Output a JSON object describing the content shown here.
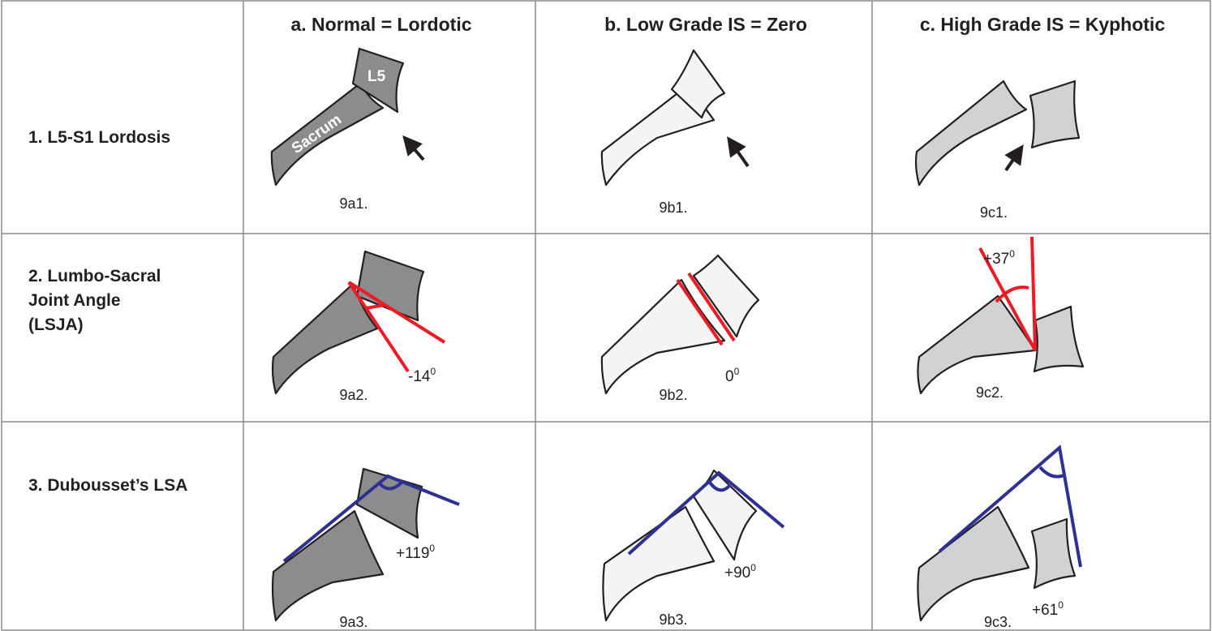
{
  "columns": [
    "a. Normal = Lordotic",
    "b. Low Grade IS = Zero",
    "c. High Grade IS = Kyphotic"
  ],
  "rows": [
    {
      "label": [
        "1. L5-S1 Lordosis"
      ],
      "cells": [
        {
          "caption": "9a1.",
          "labels": [
            "L5",
            "Sacrum"
          ]
        },
        {
          "caption": "9b1."
        },
        {
          "caption": "9c1."
        }
      ]
    },
    {
      "label": [
        "2. Lumbo-Sacral",
        "Joint  Angle",
        "(LSJA)"
      ],
      "cells": [
        {
          "caption": "9a2.",
          "angle": "-14",
          "angle_unit": "0"
        },
        {
          "caption": "9b2.",
          "angle": "0",
          "angle_unit": "0"
        },
        {
          "caption": "9c2.",
          "angle": "+37",
          "angle_unit": "0"
        }
      ]
    },
    {
      "label": [
        "3. Dubousset’s LSA"
      ],
      "cells": [
        {
          "caption": "9a3.",
          "angle": "+119",
          "angle_unit": "0"
        },
        {
          "caption": "9b3.",
          "angle": "+90",
          "angle_unit": "0"
        },
        {
          "caption": "9c3.",
          "angle": "+61",
          "angle_unit": "0"
        }
      ]
    }
  ]
}
